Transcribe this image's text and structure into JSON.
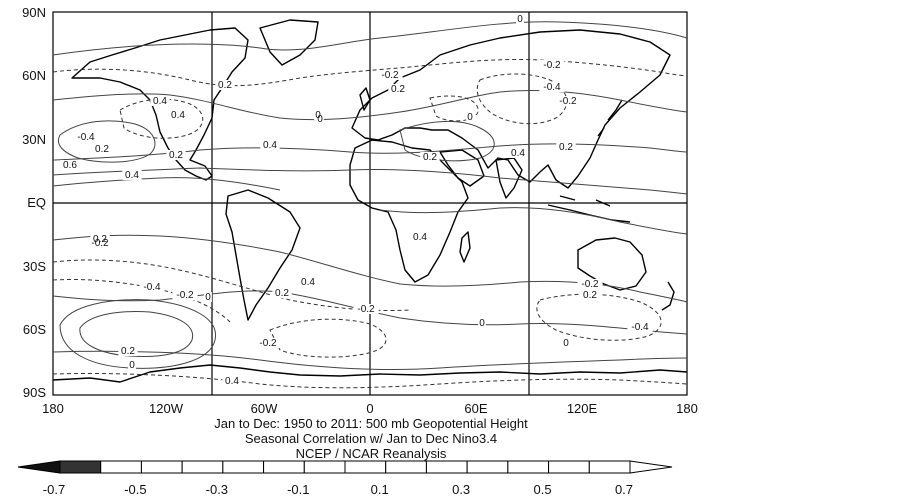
{
  "map": {
    "lat_labels": [
      "90N",
      "60N",
      "30N",
      "EQ",
      "30S",
      "60S",
      "90S"
    ],
    "lon_labels": [
      "180",
      "120W",
      "60W",
      "0",
      "60E",
      "120E",
      "180"
    ],
    "caption": [
      "Jan to Dec: 1950 to 2011: 500 mb Geopotential Height",
      "Seasonal Correlation w/ Jan to Dec Nino3.4",
      "NCEP / NCAR Reanalysis"
    ],
    "contour_labels": [
      "0",
      "-0.2",
      "0.2",
      "0.4",
      "-0.4",
      "0.2",
      "0.4",
      "0.6",
      "0.4",
      "0",
      "0.2",
      "-0.2",
      "0",
      "0.2",
      "0.4",
      "0.2",
      "0.4",
      "-0.4",
      "0.2",
      "0.4",
      "-0.2",
      "0",
      "-0.2",
      "0.2",
      "0",
      "0.4",
      "-0.2",
      "-0.4",
      "0.2",
      "0",
      "-0.2",
      "0",
      "0.4",
      "0.2",
      "-0.2",
      "0",
      "-0.4",
      "-0.2",
      "0.2"
    ],
    "colorbar": {
      "ticks": [
        "-0.7",
        "-0.5",
        "-0.3",
        "-0.1",
        "0.1",
        "0.3",
        "0.5",
        "0.7"
      ],
      "shade_colors": [
        "#111111",
        "#333333",
        "#ffffff",
        "#ffffff",
        "#ffffff",
        "#ffffff",
        "#ffffff",
        "#ffffff",
        "#ffffff",
        "#ffffff",
        "#ffffff",
        "#ffffff",
        "#ffffff",
        "#ffffff",
        "#ffffff",
        "#ffffff"
      ]
    }
  }
}
